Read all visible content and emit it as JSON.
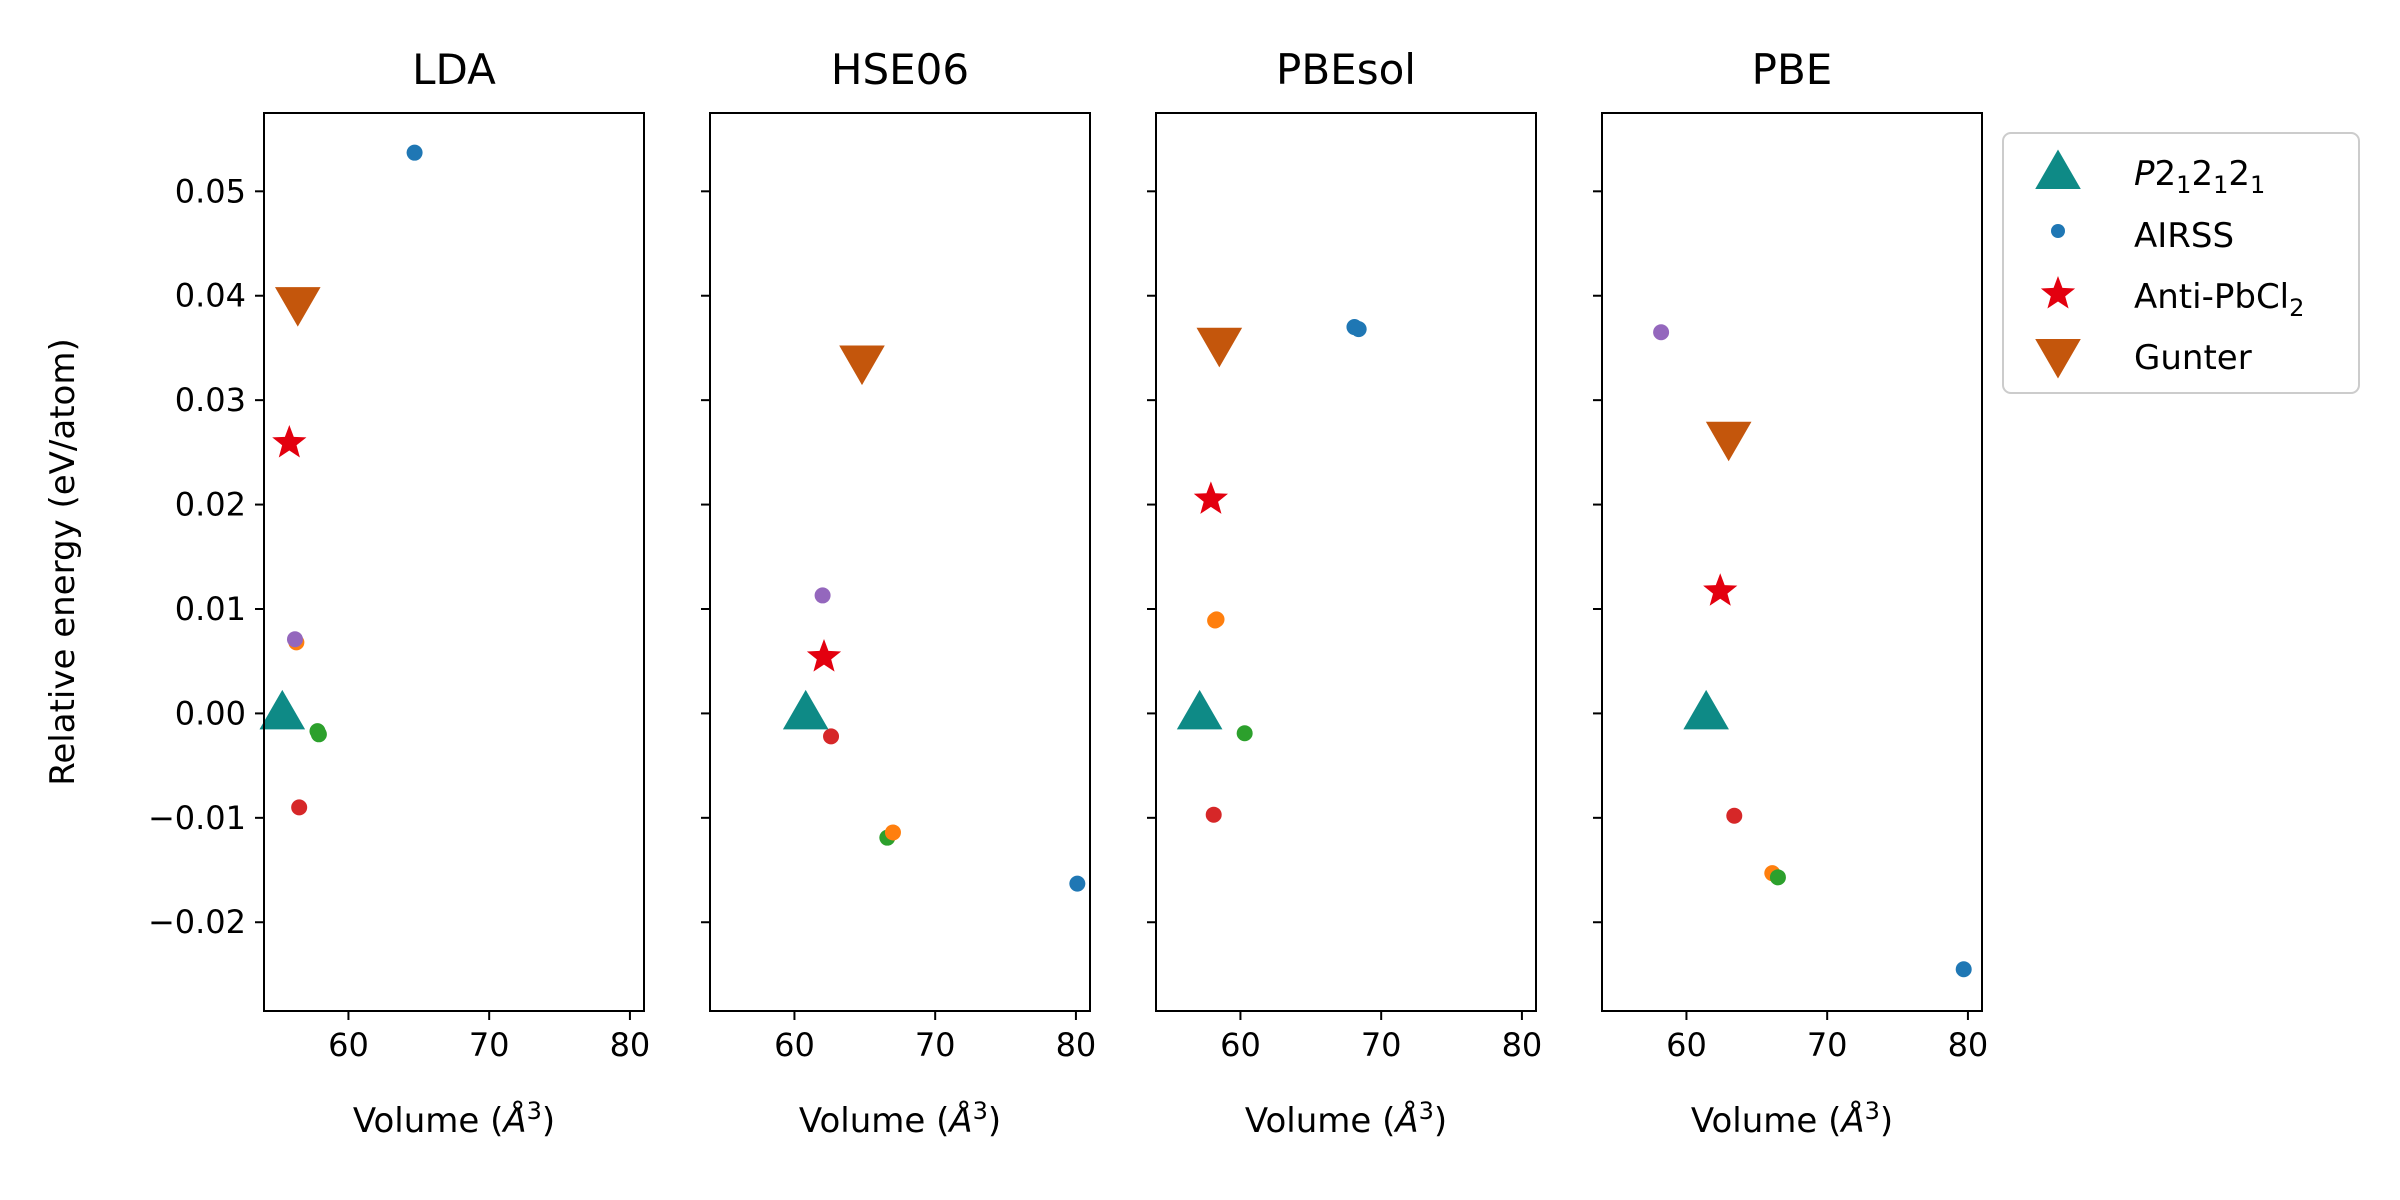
{
  "chart_data": {
    "type": "scatter",
    "xlim": [
      54,
      81
    ],
    "ylim": [
      -0.0285,
      0.0575
    ],
    "xticks": [
      60,
      70,
      80
    ],
    "yticks": [
      -0.02,
      -0.01,
      0.0,
      0.01,
      0.02,
      0.03,
      0.04,
      0.05
    ],
    "ytick_labels": [
      "−0.02",
      "−0.01",
      "0.00",
      "0.01",
      "0.02",
      "0.03",
      "0.04",
      "0.05"
    ],
    "ylabel": "Relative energy (eV/atom)",
    "xlabel": "Volume (Å³)",
    "grid": false,
    "legend_position": "right",
    "legend": [
      {
        "label": "P2₁2₁2₁",
        "marker": "triangle-up",
        "color": "#0e8a86"
      },
      {
        "label": "AIRSS",
        "marker": "dot",
        "color": "#1f77b4"
      },
      {
        "label": "Anti-PbCl₂",
        "marker": "star",
        "color": "#e3000f"
      },
      {
        "label": "Gunter",
        "marker": "triangle-down",
        "color": "#c4560c"
      }
    ],
    "colors": {
      "p212121": "#0e8a86",
      "anti": "#e3000f",
      "gunter": "#c4560c",
      "airss_blue": "#1f77b4",
      "airss_orange": "#ff7f0e",
      "airss_green": "#2ca02c",
      "airss_red": "#d62728",
      "airss_purple": "#9467bd"
    },
    "panels": [
      {
        "title": "LDA",
        "p212121": {
          "x": 55.3,
          "y": 0.0
        },
        "anti": {
          "x": 55.8,
          "y": 0.0259
        },
        "gunter": {
          "x": 56.4,
          "y": 0.0393
        },
        "airss": [
          {
            "x": 64.7,
            "y": 0.0537,
            "color": "airss_blue"
          },
          {
            "x": 56.3,
            "y": 0.0068,
            "color": "airss_orange"
          },
          {
            "x": 56.2,
            "y": 0.0071,
            "color": "airss_purple"
          },
          {
            "x": 57.8,
            "y": -0.0017,
            "color": "airss_green"
          },
          {
            "x": 57.9,
            "y": -0.002,
            "color": "airss_green"
          },
          {
            "x": 56.5,
            "y": -0.009,
            "color": "airss_red"
          }
        ]
      },
      {
        "title": "HSE06",
        "p212121": {
          "x": 60.8,
          "y": 0.0
        },
        "anti": {
          "x": 62.1,
          "y": 0.0054
        },
        "gunter": {
          "x": 64.8,
          "y": 0.0337
        },
        "airss": [
          {
            "x": 62.0,
            "y": 0.0113,
            "color": "airss_purple"
          },
          {
            "x": 62.6,
            "y": -0.0022,
            "color": "airss_red"
          },
          {
            "x": 66.6,
            "y": -0.0119,
            "color": "airss_green"
          },
          {
            "x": 67.0,
            "y": -0.0114,
            "color": "airss_orange"
          },
          {
            "x": 80.1,
            "y": -0.0163,
            "color": "airss_blue"
          }
        ]
      },
      {
        "title": "PBEsol",
        "p212121": {
          "x": 57.1,
          "y": 0.0
        },
        "anti": {
          "x": 57.9,
          "y": 0.0205
        },
        "gunter": {
          "x": 58.5,
          "y": 0.0354
        },
        "airss": [
          {
            "x": 68.1,
            "y": 0.037,
            "color": "airss_blue"
          },
          {
            "x": 68.4,
            "y": 0.0368,
            "color": "airss_blue"
          },
          {
            "x": 58.2,
            "y": 0.0089,
            "color": "airss_orange"
          },
          {
            "x": 58.3,
            "y": 0.009,
            "color": "airss_orange"
          },
          {
            "x": 60.3,
            "y": -0.0019,
            "color": "airss_green"
          },
          {
            "x": 58.1,
            "y": -0.0097,
            "color": "airss_red"
          }
        ]
      },
      {
        "title": "PBE",
        "p212121": {
          "x": 61.4,
          "y": 0.0
        },
        "anti": {
          "x": 62.4,
          "y": 0.0117
        },
        "gunter": {
          "x": 63.0,
          "y": 0.0264
        },
        "airss": [
          {
            "x": 58.2,
            "y": 0.0365,
            "color": "airss_purple"
          },
          {
            "x": 63.4,
            "y": -0.0098,
            "color": "airss_red"
          },
          {
            "x": 66.1,
            "y": -0.0153,
            "color": "airss_orange"
          },
          {
            "x": 66.5,
            "y": -0.0157,
            "color": "airss_green"
          },
          {
            "x": 79.7,
            "y": -0.0245,
            "color": "airss_blue"
          }
        ]
      }
    ]
  }
}
